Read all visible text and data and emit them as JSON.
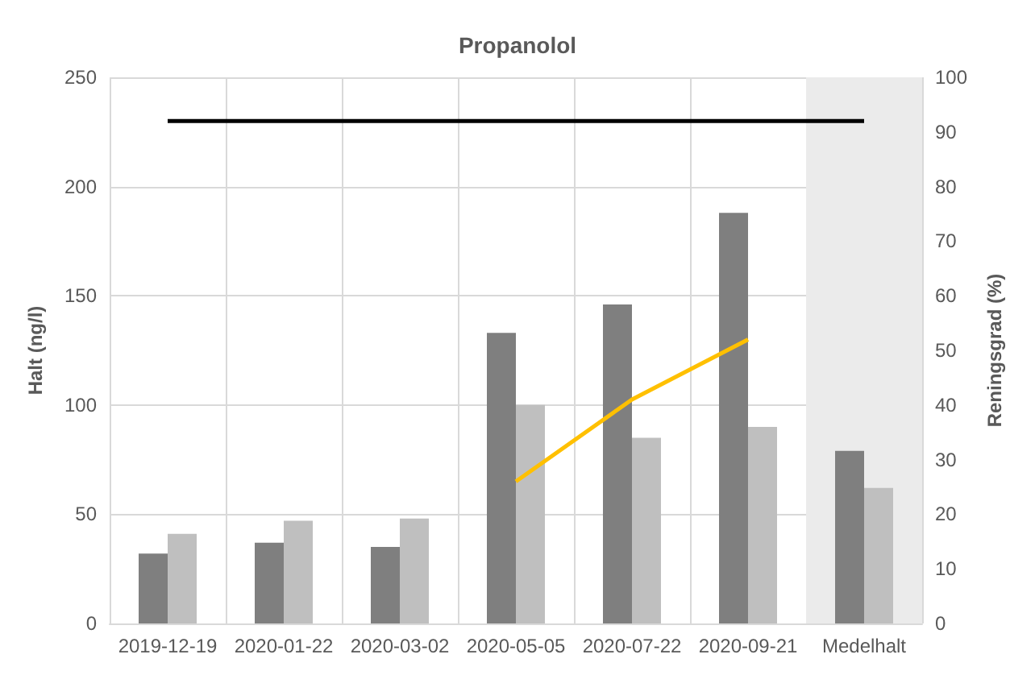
{
  "chart_data": {
    "type": "bar",
    "title": "Propanolol",
    "ylabel": "Halt (ng/l)",
    "y2label": "Reningsgrad (%)",
    "categories": [
      "2019-12-19",
      "2020-01-22",
      "2020-03-02",
      "2020-05-05",
      "2020-07-22",
      "2020-09-21",
      "Medelhalt"
    ],
    "series": [
      {
        "color": "#7f7f7f",
        "values": [
          32,
          37,
          35,
          133,
          146,
          188,
          79
        ]
      },
      {
        "color": "#bfbfbf",
        "values": [
          41,
          47,
          48,
          100,
          85,
          90,
          62
        ]
      },
      {
        "type": "line",
        "axis": "y2",
        "color": "#ffc000",
        "values": [
          null,
          null,
          null,
          26,
          41,
          52,
          null
        ]
      },
      {
        "type": "line",
        "axis": "y2",
        "color": "#000000",
        "values": [
          92,
          92,
          92,
          92,
          92,
          92,
          92
        ]
      }
    ],
    "ylim": [
      0,
      250
    ],
    "yticks": [
      0,
      50,
      100,
      150,
      200,
      250
    ],
    "y2lim": [
      0,
      100
    ],
    "y2ticks": [
      0,
      10,
      20,
      30,
      40,
      50,
      60,
      70,
      80,
      90,
      100
    ],
    "bands": [
      {
        "axis": "x",
        "from": "Medelhalt",
        "to": "Medelhalt",
        "color": "#ebebeb"
      }
    ],
    "grid": true,
    "marker": "none"
  }
}
